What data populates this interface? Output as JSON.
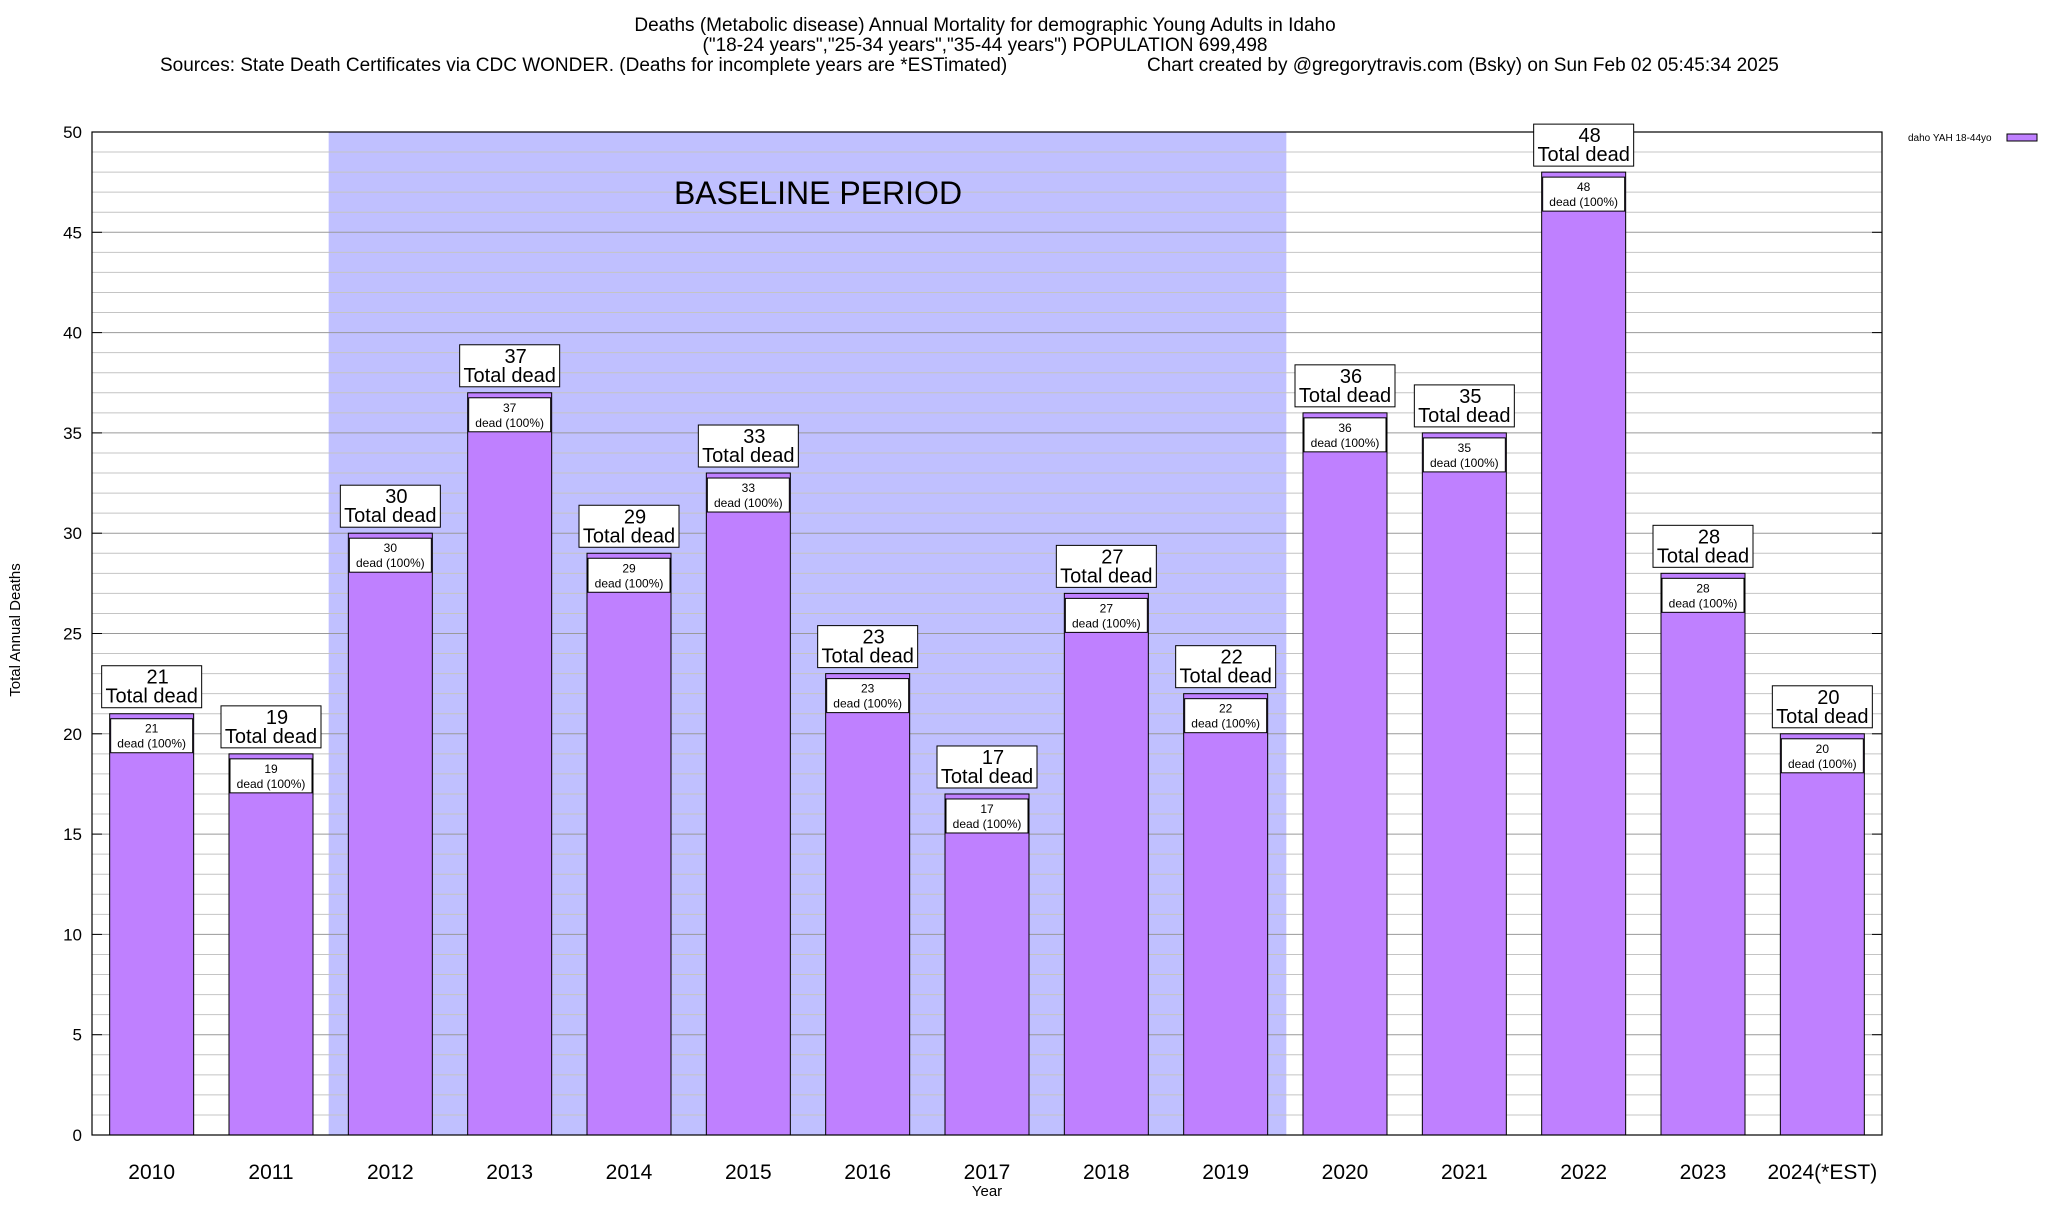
{
  "header": {
    "title_line1": "Deaths (Metabolic disease) Annual Mortality for demographic Young Adults in Idaho",
    "title_line2": "(\"18-24 years\",\"25-34 years\",\"35-44 years\") POPULATION 699,498",
    "sources": "Sources: State Death Certificates via CDC WONDER. (Deaths for incomplete years are *ESTimated)",
    "credit": "Chart created by @gregorytravis.com (Bsky) on Sun Feb 02 05:45:34 2025"
  },
  "chart_data": {
    "type": "bar",
    "title": "Deaths (Metabolic disease) Annual Mortality for demographic Young Adults in Idaho",
    "xlabel": "Year",
    "ylabel": "Total Annual Deaths",
    "ylim": [
      0,
      50
    ],
    "yticks": [
      0,
      5,
      10,
      15,
      20,
      25,
      30,
      35,
      40,
      45,
      50
    ],
    "grid": true,
    "legend_position": "top-right",
    "categories": [
      "2010",
      "2011",
      "2012",
      "2013",
      "2014",
      "2015",
      "2016",
      "2017",
      "2018",
      "2019",
      "2020",
      "2021",
      "2022",
      "2023",
      "2024(*EST)"
    ],
    "series": [
      {
        "name": "daho YAH 18-44yo",
        "color": "#bf80ff",
        "values": [
          21,
          19,
          30,
          37,
          29,
          33,
          23,
          17,
          27,
          22,
          36,
          35,
          48,
          28,
          20
        ]
      }
    ],
    "total_label": "Total dead",
    "inner_label": "dead (100%)",
    "baseline": {
      "label": "BASELINE PERIOD",
      "start": "2012",
      "end": "2019",
      "color": "#c0c0ff"
    }
  }
}
